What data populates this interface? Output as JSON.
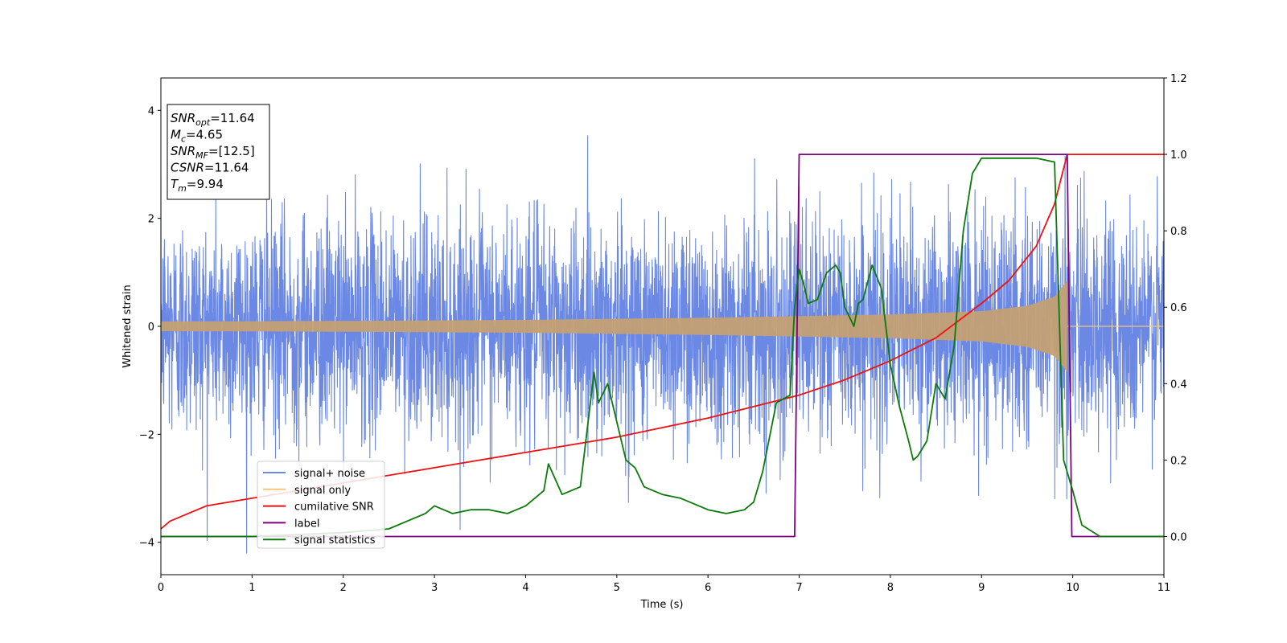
{
  "chart_data": {
    "type": "line",
    "xlabel": "Time (s)",
    "ylabel": "Whitened strain",
    "xlim": [
      0,
      11
    ],
    "ylim_left": [
      -4.6,
      4.6
    ],
    "ylim_right": [
      -0.1,
      1.2
    ],
    "x_ticks": [
      0,
      1,
      2,
      3,
      4,
      5,
      6,
      7,
      8,
      9,
      10,
      11
    ],
    "y_left_ticks": [
      -4,
      -2,
      0,
      2,
      4
    ],
    "y_right_ticks": [
      0.0,
      0.2,
      0.4,
      0.6,
      0.8,
      1.0,
      1.2
    ],
    "grid": false,
    "legend_placement": "lower-left",
    "annotation": [
      {
        "sym": "SNR",
        "sub": "opt",
        "value": "=11.64"
      },
      {
        "sym": "M",
        "sub": "c",
        "value": "=4.65"
      },
      {
        "sym": "SNR",
        "sub": "MF",
        "value": "=[12.5]"
      },
      {
        "sym": "CSNR",
        "sub": "",
        "value": "=11.64"
      },
      {
        "sym": "T",
        "sub": "m",
        "value": "=9.94"
      }
    ],
    "series": [
      {
        "name": "signal+ noise",
        "axis": "left",
        "color": "#6a88e4",
        "kind": "noise",
        "amplitude_std": 1.0,
        "x_range": [
          0,
          11
        ]
      },
      {
        "name": "signal only",
        "axis": "left",
        "color": "#f5c57a",
        "kind": "chirp",
        "t_merge": 9.94,
        "amplitude_envelope": {
          "x": [
            0,
            2,
            4,
            6,
            7,
            8,
            9,
            9.5,
            9.8,
            9.94
          ],
          "y": [
            0.09,
            0.1,
            0.12,
            0.16,
            0.19,
            0.22,
            0.28,
            0.38,
            0.55,
            0.85
          ]
        }
      },
      {
        "name": "cumilative SNR",
        "axis": "right",
        "color": "#ee1111",
        "x": [
          0,
          0.1,
          0.5,
          1,
          2,
          3,
          4,
          5,
          6,
          7,
          7.5,
          8,
          8.5,
          9,
          9.3,
          9.6,
          9.8,
          9.94,
          10,
          11
        ],
        "y": [
          0.02,
          0.04,
          0.08,
          0.1,
          0.14,
          0.18,
          0.22,
          0.26,
          0.31,
          0.37,
          0.41,
          0.46,
          0.52,
          0.61,
          0.67,
          0.76,
          0.87,
          1.0,
          1.0,
          1.0
        ]
      },
      {
        "name": "label",
        "axis": "right",
        "color": "#800080",
        "x": [
          0,
          6.95,
          7.0,
          9.94,
          9.99,
          11
        ],
        "y": [
          0,
          0,
          1,
          1,
          0,
          0
        ]
      },
      {
        "name": "signal statistics",
        "axis": "right",
        "color": "#0a7a0a",
        "x": [
          0,
          1,
          2,
          2.5,
          2.7,
          2.9,
          3.0,
          3.2,
          3.4,
          3.6,
          3.8,
          4.0,
          4.2,
          4.25,
          4.4,
          4.6,
          4.75,
          4.8,
          4.9,
          5.0,
          5.1,
          5.2,
          5.3,
          5.5,
          5.7,
          5.8,
          6.0,
          6.2,
          6.4,
          6.5,
          6.6,
          6.75,
          6.9,
          6.95,
          7.0,
          7.05,
          7.1,
          7.2,
          7.3,
          7.4,
          7.45,
          7.5,
          7.6,
          7.65,
          7.7,
          7.8,
          7.9,
          8.0,
          8.1,
          8.2,
          8.25,
          8.3,
          8.4,
          8.5,
          8.6,
          8.7,
          8.8,
          8.9,
          9.0,
          9.3,
          9.6,
          9.8,
          9.9,
          10.0,
          10.1,
          10.3,
          11
        ],
        "y": [
          0,
          0,
          0.01,
          0.02,
          0.04,
          0.06,
          0.08,
          0.06,
          0.07,
          0.07,
          0.06,
          0.08,
          0.12,
          0.19,
          0.11,
          0.13,
          0.43,
          0.35,
          0.4,
          0.3,
          0.2,
          0.18,
          0.13,
          0.11,
          0.1,
          0.09,
          0.07,
          0.06,
          0.07,
          0.09,
          0.17,
          0.35,
          0.37,
          0.6,
          0.7,
          0.66,
          0.61,
          0.62,
          0.69,
          0.71,
          0.69,
          0.6,
          0.55,
          0.61,
          0.62,
          0.71,
          0.65,
          0.45,
          0.34,
          0.25,
          0.2,
          0.21,
          0.25,
          0.4,
          0.36,
          0.5,
          0.8,
          0.95,
          0.99,
          0.99,
          0.99,
          0.98,
          0.2,
          0.12,
          0.03,
          0.0,
          0.0
        ]
      }
    ]
  }
}
